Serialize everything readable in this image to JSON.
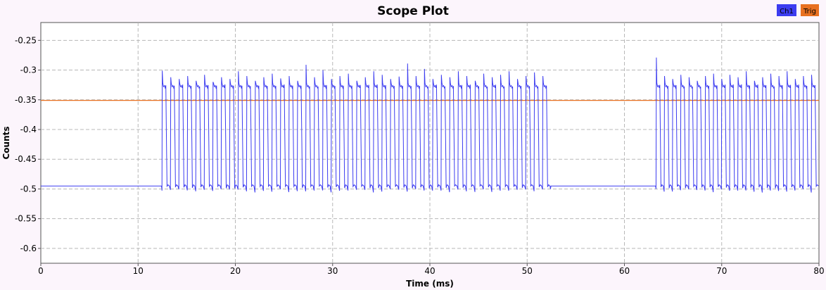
{
  "chart_data": {
    "type": "line",
    "title": "Scope Plot",
    "xlabel": "Time (ms)",
    "ylabel": "Counts",
    "xlim": [
      0,
      80
    ],
    "ylim": [
      -0.625,
      -0.22
    ],
    "x_ticks": [
      0,
      10,
      20,
      30,
      40,
      50,
      60,
      70,
      80
    ],
    "x_tick_labels": [
      "0",
      "10",
      "20",
      "30",
      "40",
      "50",
      "60",
      "70",
      "80"
    ],
    "y_ticks": [
      -0.25,
      -0.3,
      -0.35,
      -0.4,
      -0.45,
      -0.5,
      -0.55,
      -0.6
    ],
    "y_tick_labels": [
      "-0.25",
      "-0.3",
      "-0.35",
      "-0.4",
      "-0.45",
      "-0.5",
      "-0.55",
      "-0.6"
    ],
    "grid": true,
    "legend_position": "top-right",
    "series": [
      {
        "name": "Ch1",
        "color": "#3c3cf0",
        "baseline": -0.495,
        "high": -0.33,
        "low": -0.495,
        "bursts": [
          {
            "start": 12.4,
            "end": 52.4,
            "count": 46,
            "pulse_peaks": [
              -0.301,
              -0.312,
              -0.315,
              -0.31,
              -0.318,
              -0.308,
              -0.32,
              -0.312,
              -0.315,
              -0.302,
              -0.31,
              -0.318,
              -0.312,
              -0.306,
              -0.314,
              -0.31,
              -0.318,
              -0.291,
              -0.312,
              -0.3,
              -0.315,
              -0.31,
              -0.306,
              -0.318,
              -0.312,
              -0.302,
              -0.308,
              -0.315,
              -0.311,
              -0.289,
              -0.31,
              -0.298,
              -0.315,
              -0.308,
              -0.312,
              -0.302,
              -0.31,
              -0.318,
              -0.306,
              -0.312,
              -0.308,
              -0.302,
              -0.315,
              -0.31,
              -0.304,
              -0.31
            ]
          },
          {
            "start": 63.2,
            "end": 80,
            "count": 20,
            "pulse_peaks": [
              -0.279,
              -0.31,
              -0.315,
              -0.308,
              -0.312,
              -0.318,
              -0.31,
              -0.306,
              -0.315,
              -0.308,
              -0.312,
              -0.302,
              -0.318,
              -0.312,
              -0.306,
              -0.31,
              -0.302,
              -0.315,
              -0.31,
              -0.308
            ]
          }
        ]
      },
      {
        "name": "Trig",
        "color": "#e87020",
        "values": [
          {
            "x": 0,
            "y": -0.351
          },
          {
            "x": 80,
            "y": -0.351
          }
        ]
      }
    ]
  }
}
